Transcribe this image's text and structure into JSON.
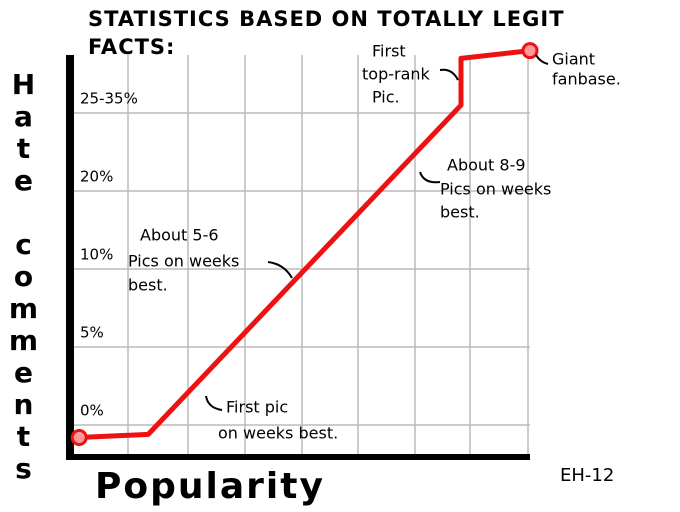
{
  "chart_data": {
    "type": "line",
    "title": [
      "STATISTICS BASED ON TOTALLY LEGIT",
      "FACTS:"
    ],
    "y_label": "Hate comments",
    "x_label": "Popularity",
    "signature": "EH-12",
    "xlim": [
      0,
      100
    ],
    "yticks": [
      {
        "value": 0,
        "label": "0%"
      },
      {
        "value": 5,
        "label": "5%"
      },
      {
        "value": 10,
        "label": "10%"
      },
      {
        "value": 20,
        "label": "20%"
      },
      {
        "value": 25,
        "label": "25-35%"
      }
    ],
    "grid": true,
    "end_markers": true,
    "series": [
      {
        "color": "#ee1111",
        "x": [
          2,
          17,
          85,
          85,
          100
        ],
        "values": [
          -0.8,
          -0.6,
          25.5,
          28.5,
          29
        ]
      }
    ],
    "annotations": [
      {
        "lines": [
          "First",
          "top-rank",
          "Pic."
        ]
      },
      {
        "lines": [
          "Giant",
          "fanbase."
        ]
      },
      {
        "lines": [
          "About 8-9",
          "Pics on weeks",
          "best."
        ]
      },
      {
        "lines": [
          "About 5-6",
          "Pics on weeks",
          "best."
        ]
      },
      {
        "lines": [
          "First pic",
          "on weeks best."
        ]
      }
    ]
  }
}
